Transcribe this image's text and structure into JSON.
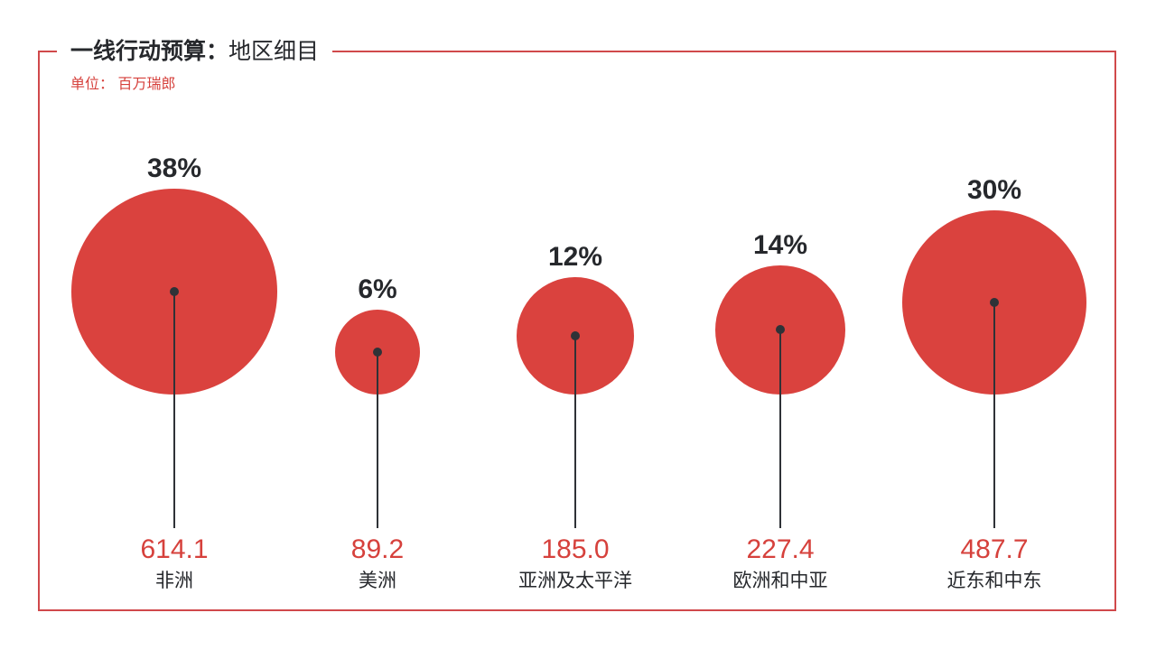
{
  "header": {
    "title_bold": "一线行动预算：",
    "title_regular": "地区细目",
    "unit_note": "单位： 百万瑞郎"
  },
  "chart_data": {
    "type": "bubble",
    "title": "一线行动预算：地区细目",
    "unit": "百万瑞郎",
    "categories": [
      "非洲",
      "美洲",
      "亚洲及太平洋",
      "欧洲和中亚",
      "近东和中东"
    ],
    "values": [
      614.1,
      89.2,
      185.0,
      227.4,
      487.7
    ],
    "percentages": [
      38,
      6,
      12,
      14,
      30
    ],
    "items": [
      {
        "region": "非洲",
        "percent_label": "38%",
        "value_label": "614.1"
      },
      {
        "region": "美洲",
        "percent_label": "6%",
        "value_label": "89.2"
      },
      {
        "region": "亚洲及太平洋",
        "percent_label": "12%",
        "value_label": "185.0"
      },
      {
        "region": "欧洲和中亚",
        "percent_label": "14%",
        "value_label": "227.4"
      },
      {
        "region": "近东和中东",
        "percent_label": "30%",
        "value_label": "487.7"
      }
    ],
    "layout_hints": {
      "legend": "none",
      "grid": "off",
      "bubbles_bottom_aligned": true,
      "area_proportional_to_value": true
    },
    "colors": {
      "bubble": "#DA423E",
      "value_text": "#D6413C",
      "label_text": "#26282C",
      "frame_border": "#D0494B",
      "leader_line": "#2F3237"
    }
  }
}
